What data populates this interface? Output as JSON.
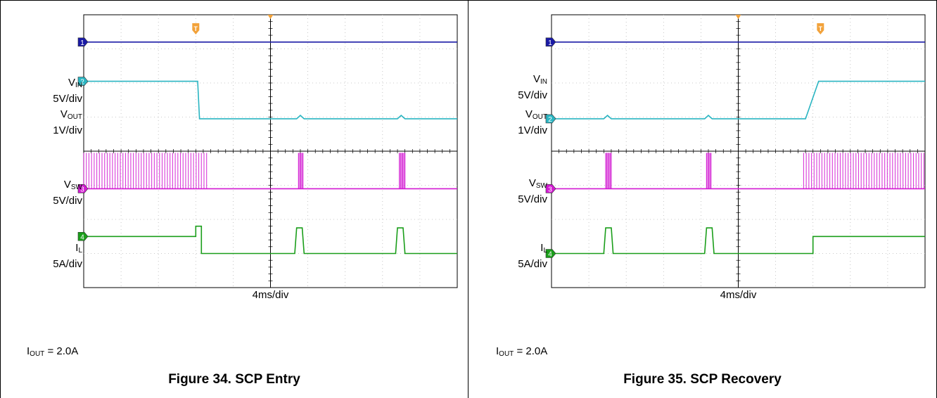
{
  "figures": [
    {
      "caption": "Figure 34. SCP Entry",
      "condition": {
        "sym": "I",
        "sub": "OUT",
        "text": " = 2.0A"
      },
      "timebase": "4ms/div",
      "channels": [
        {
          "name": "V",
          "sub": "IN",
          "scale": "5V/div",
          "marker": "1",
          "color": "#1a1aa6"
        },
        {
          "name": "V",
          "sub": "OUT",
          "scale": "1V/div",
          "marker": "2",
          "color": "#2ab5c2"
        },
        {
          "name": "V",
          "sub": "SW",
          "scale": "5V/div",
          "marker": "3",
          "color": "#d21ad2"
        },
        {
          "name": "I",
          "sub": "L",
          "scale": "5A/div",
          "marker": "4",
          "color": "#1a9e1a"
        }
      ],
      "trigger_marker": "T"
    },
    {
      "caption": "Figure 35. SCP Recovery",
      "condition": {
        "sym": "I",
        "sub": "OUT",
        "text": " = 2.0A"
      },
      "timebase": "4ms/div",
      "channels": [
        {
          "name": "V",
          "sub": "IN",
          "scale": "5V/div",
          "marker": "1",
          "color": "#1a1aa6"
        },
        {
          "name": "V",
          "sub": "OUT",
          "scale": "1V/div",
          "marker": "2",
          "color": "#2ab5c2"
        },
        {
          "name": "V",
          "sub": "SW",
          "scale": "5V/div",
          "marker": "3",
          "color": "#d21ad2"
        },
        {
          "name": "I",
          "sub": "L",
          "scale": "5A/div",
          "marker": "4",
          "color": "#1a9e1a"
        }
      ],
      "trigger_marker": "T"
    }
  ],
  "chart_data": [
    {
      "type": "line",
      "x_unit": "div",
      "xlim": [
        0,
        10
      ],
      "ylim": [
        0,
        8
      ],
      "grid": true,
      "series": [
        {
          "name": "VIN",
          "color": "#1a1aa6",
          "points": [
            [
              0,
              7.2
            ],
            [
              10,
              7.2
            ]
          ]
        },
        {
          "name": "VOUT",
          "color": "#2ab5c2",
          "points": [
            [
              0,
              6.05
            ],
            [
              3.05,
              6.05
            ],
            [
              3.1,
              4.95
            ],
            [
              5.7,
              4.95
            ],
            [
              5.8,
              5.05
            ],
            [
              5.9,
              4.95
            ],
            [
              8.4,
              4.95
            ],
            [
              8.5,
              5.05
            ],
            [
              8.6,
              4.95
            ],
            [
              10,
              4.95
            ]
          ]
        },
        {
          "name": "VSW",
          "color": "#d21ad2",
          "switching": [
            [
              0,
              3.3
            ]
          ],
          "bursts": [
            [
              5.75,
              5.9
            ],
            [
              8.45,
              8.6
            ]
          ],
          "points": [
            [
              0,
              2.9
            ],
            [
              10,
              2.9
            ]
          ]
        },
        {
          "name": "IL",
          "color": "#1a9e1a",
          "points": [
            [
              0,
              1.5
            ],
            [
              3.0,
              1.5
            ],
            [
              3.0,
              1.8
            ],
            [
              3.15,
              1.8
            ],
            [
              3.15,
              1.0
            ],
            [
              5.65,
              1.0
            ],
            [
              5.7,
              1.75
            ],
            [
              5.85,
              1.75
            ],
            [
              5.9,
              1.0
            ],
            [
              8.35,
              1.0
            ],
            [
              8.4,
              1.75
            ],
            [
              8.55,
              1.75
            ],
            [
              8.6,
              1.0
            ],
            [
              10,
              1.0
            ]
          ]
        }
      ]
    },
    {
      "type": "line",
      "x_unit": "div",
      "xlim": [
        0,
        10
      ],
      "ylim": [
        0,
        8
      ],
      "grid": true,
      "series": [
        {
          "name": "VIN",
          "color": "#1a1aa6",
          "points": [
            [
              0,
              7.2
            ],
            [
              10,
              7.2
            ]
          ]
        },
        {
          "name": "VOUT",
          "color": "#2ab5c2",
          "points": [
            [
              0,
              4.95
            ],
            [
              1.4,
              4.95
            ],
            [
              1.5,
              5.05
            ],
            [
              1.6,
              4.95
            ],
            [
              4.1,
              4.95
            ],
            [
              4.2,
              5.05
            ],
            [
              4.3,
              4.95
            ],
            [
              6.8,
              4.95
            ],
            [
              7.15,
              6.05
            ],
            [
              10,
              6.05
            ]
          ]
        },
        {
          "name": "VSW",
          "color": "#d21ad2",
          "switching": [
            [
              6.75,
              10
            ]
          ],
          "bursts": [
            [
              1.45,
              1.6
            ],
            [
              4.15,
              4.3
            ]
          ],
          "points": [
            [
              0,
              2.9
            ],
            [
              10,
              2.9
            ]
          ]
        },
        {
          "name": "IL",
          "color": "#1a9e1a",
          "points": [
            [
              0,
              1.0
            ],
            [
              1.4,
              1.0
            ],
            [
              1.45,
              1.75
            ],
            [
              1.6,
              1.75
            ],
            [
              1.65,
              1.0
            ],
            [
              4.1,
              1.0
            ],
            [
              4.15,
              1.75
            ],
            [
              4.3,
              1.75
            ],
            [
              4.35,
              1.0
            ],
            [
              7.0,
              1.0
            ],
            [
              7.0,
              1.5
            ],
            [
              10,
              1.5
            ]
          ]
        }
      ]
    }
  ]
}
